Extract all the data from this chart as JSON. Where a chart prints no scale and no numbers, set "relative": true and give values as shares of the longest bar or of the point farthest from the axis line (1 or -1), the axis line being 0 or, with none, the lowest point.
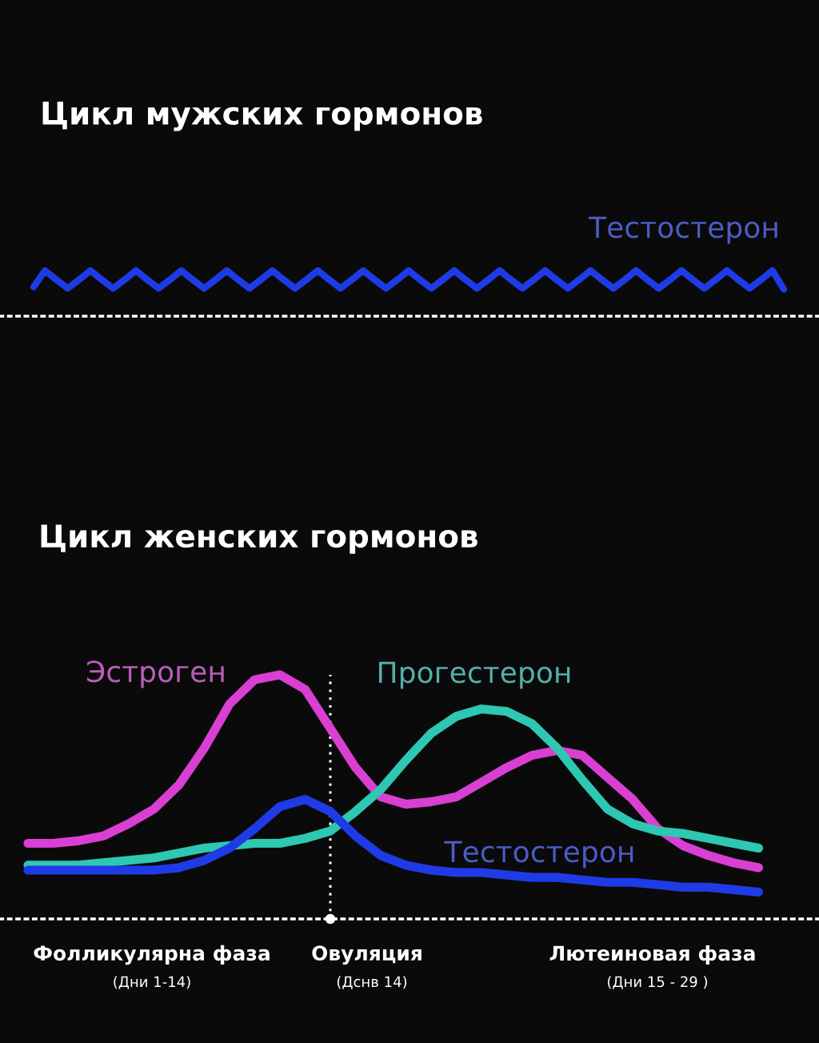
{
  "chart_data": [
    {
      "type": "line",
      "title": "Цикл мужских гормонов",
      "relative": true,
      "legend": false,
      "grid": false,
      "marker": "none",
      "line_style": "solid",
      "categories": [
        null,
        null,
        null,
        null,
        null,
        null,
        null,
        null,
        null,
        null,
        null,
        null,
        null,
        null,
        null,
        null,
        null,
        null,
        null,
        null,
        null,
        null,
        null,
        null,
        null,
        null,
        null,
        null,
        null,
        null,
        null,
        null,
        null,
        null,
        null,
        null,
        null,
        null,
        null,
        null,
        null,
        null,
        null,
        null,
        null,
        null,
        null,
        null,
        null,
        null,
        null,
        null,
        null,
        null,
        null,
        null,
        null,
        null,
        null,
        null,
        null,
        null,
        null,
        null,
        null,
        null,
        null
      ],
      "series": [
        {
          "name": "Тестостерон",
          "color": "#1f3be6",
          "values": [
            0.64,
            1,
            0.8,
            0.61,
            0.8,
            1,
            0.8,
            0.61,
            0.8,
            1,
            0.8,
            0.61,
            0.8,
            1,
            0.8,
            0.61,
            0.8,
            1,
            0.8,
            0.61,
            0.8,
            1,
            0.8,
            0.61,
            0.8,
            1,
            0.8,
            0.61,
            0.8,
            1,
            0.8,
            0.61,
            0.8,
            1,
            0.8,
            0.61,
            0.8,
            1,
            0.8,
            0.61,
            0.8,
            1,
            0.8,
            0.61,
            0.8,
            1,
            0.8,
            0.61,
            0.8,
            1,
            0.8,
            0.61,
            0.8,
            1,
            0.8,
            0.61,
            0.8,
            1,
            0.8,
            0.61,
            0.8,
            1,
            0.8,
            0.61,
            0.8,
            1,
            0.59
          ]
        }
      ]
    },
    {
      "type": "line",
      "title": "Цикл женских гормонов",
      "relative": true,
      "legend": false,
      "grid": false,
      "marker": "none",
      "line_style": "solid",
      "categories": [
        null,
        null,
        null,
        null,
        null,
        null,
        null,
        null,
        null,
        null,
        null,
        null,
        null,
        null,
        null,
        null,
        null,
        null,
        null,
        null,
        null,
        null,
        null,
        null,
        null,
        null,
        null,
        null,
        null,
        null
      ],
      "series": [
        {
          "name": "Эстроген",
          "color": "#d93fd2",
          "values": [
            0.31,
            0.31,
            0.32,
            0.34,
            0.39,
            0.45,
            0.55,
            0.7,
            0.88,
            0.98,
            1,
            0.94,
            0.78,
            0.62,
            0.5,
            0.47,
            0.48,
            0.5,
            0.56,
            0.62,
            0.67,
            0.69,
            0.67,
            0.58,
            0.49,
            0.37,
            0.3,
            0.26,
            0.23,
            0.21
          ]
        },
        {
          "name": "Прогестерон",
          "color": "#2ec7b2",
          "values": [
            0.22,
            0.22,
            0.22,
            0.23,
            0.24,
            0.25,
            0.27,
            0.29,
            0.3,
            0.31,
            0.31,
            0.33,
            0.36,
            0.44,
            0.53,
            0.65,
            0.76,
            0.83,
            0.86,
            0.85,
            0.8,
            0.7,
            0.57,
            0.45,
            0.39,
            0.36,
            0.35,
            0.33,
            0.31,
            0.29
          ]
        },
        {
          "name": "Тестостерон",
          "color": "#1f3be6",
          "values": [
            0.2,
            0.2,
            0.2,
            0.2,
            0.2,
            0.2,
            0.21,
            0.24,
            0.29,
            0.37,
            0.46,
            0.49,
            0.44,
            0.34,
            0.26,
            0.22,
            0.2,
            0.19,
            0.19,
            0.18,
            0.17,
            0.17,
            0.16,
            0.15,
            0.15,
            0.14,
            0.13,
            0.13,
            0.12,
            0.11
          ]
        }
      ],
      "annotations": [
        "Фолликулярна фаза",
        "(Дни 1-14)",
        "Овуляция",
        "(Дснв 14)",
        "Лютеиновая фаза",
        "(Дни 15 - 29 )"
      ]
    }
  ]
}
